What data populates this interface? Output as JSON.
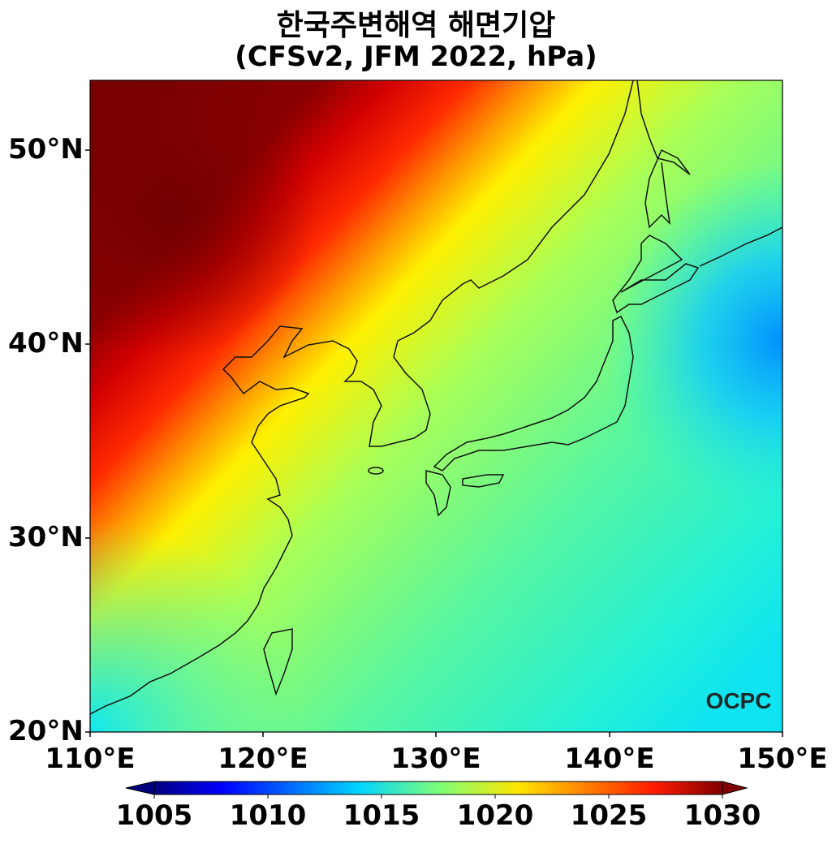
{
  "title": "한국주변해역 해면기압",
  "subtitle": "(CFSv2, JFM 2022, hPa)",
  "logo": "OCPC",
  "chart_data": {
    "type": "heatmap",
    "title": "한국주변해역 해면기압 (CFSv2, JFM 2022, hPa)",
    "variable": "sea level pressure",
    "units": "hPa",
    "x_ticks": [
      "110°E",
      "120°E",
      "130°E",
      "140°E",
      "150°E"
    ],
    "y_ticks": [
      "20°N",
      "30°N",
      "40°N",
      "50°N"
    ],
    "lon_range": [
      110,
      150
    ],
    "lat_range": [
      20,
      53.5
    ],
    "colorbar": {
      "ticks": [
        "1005",
        "1010",
        "1015",
        "1020",
        "1025",
        "1030"
      ],
      "range": [
        1005,
        1030
      ],
      "extend": "both",
      "colormap": "jet"
    },
    "features": {
      "high_center": {
        "lon": 115,
        "lat": 46,
        "approx_value": 1031
      },
      "low_region": {
        "lon": 150,
        "lat": 40,
        "approx_value": 1011
      }
    }
  }
}
